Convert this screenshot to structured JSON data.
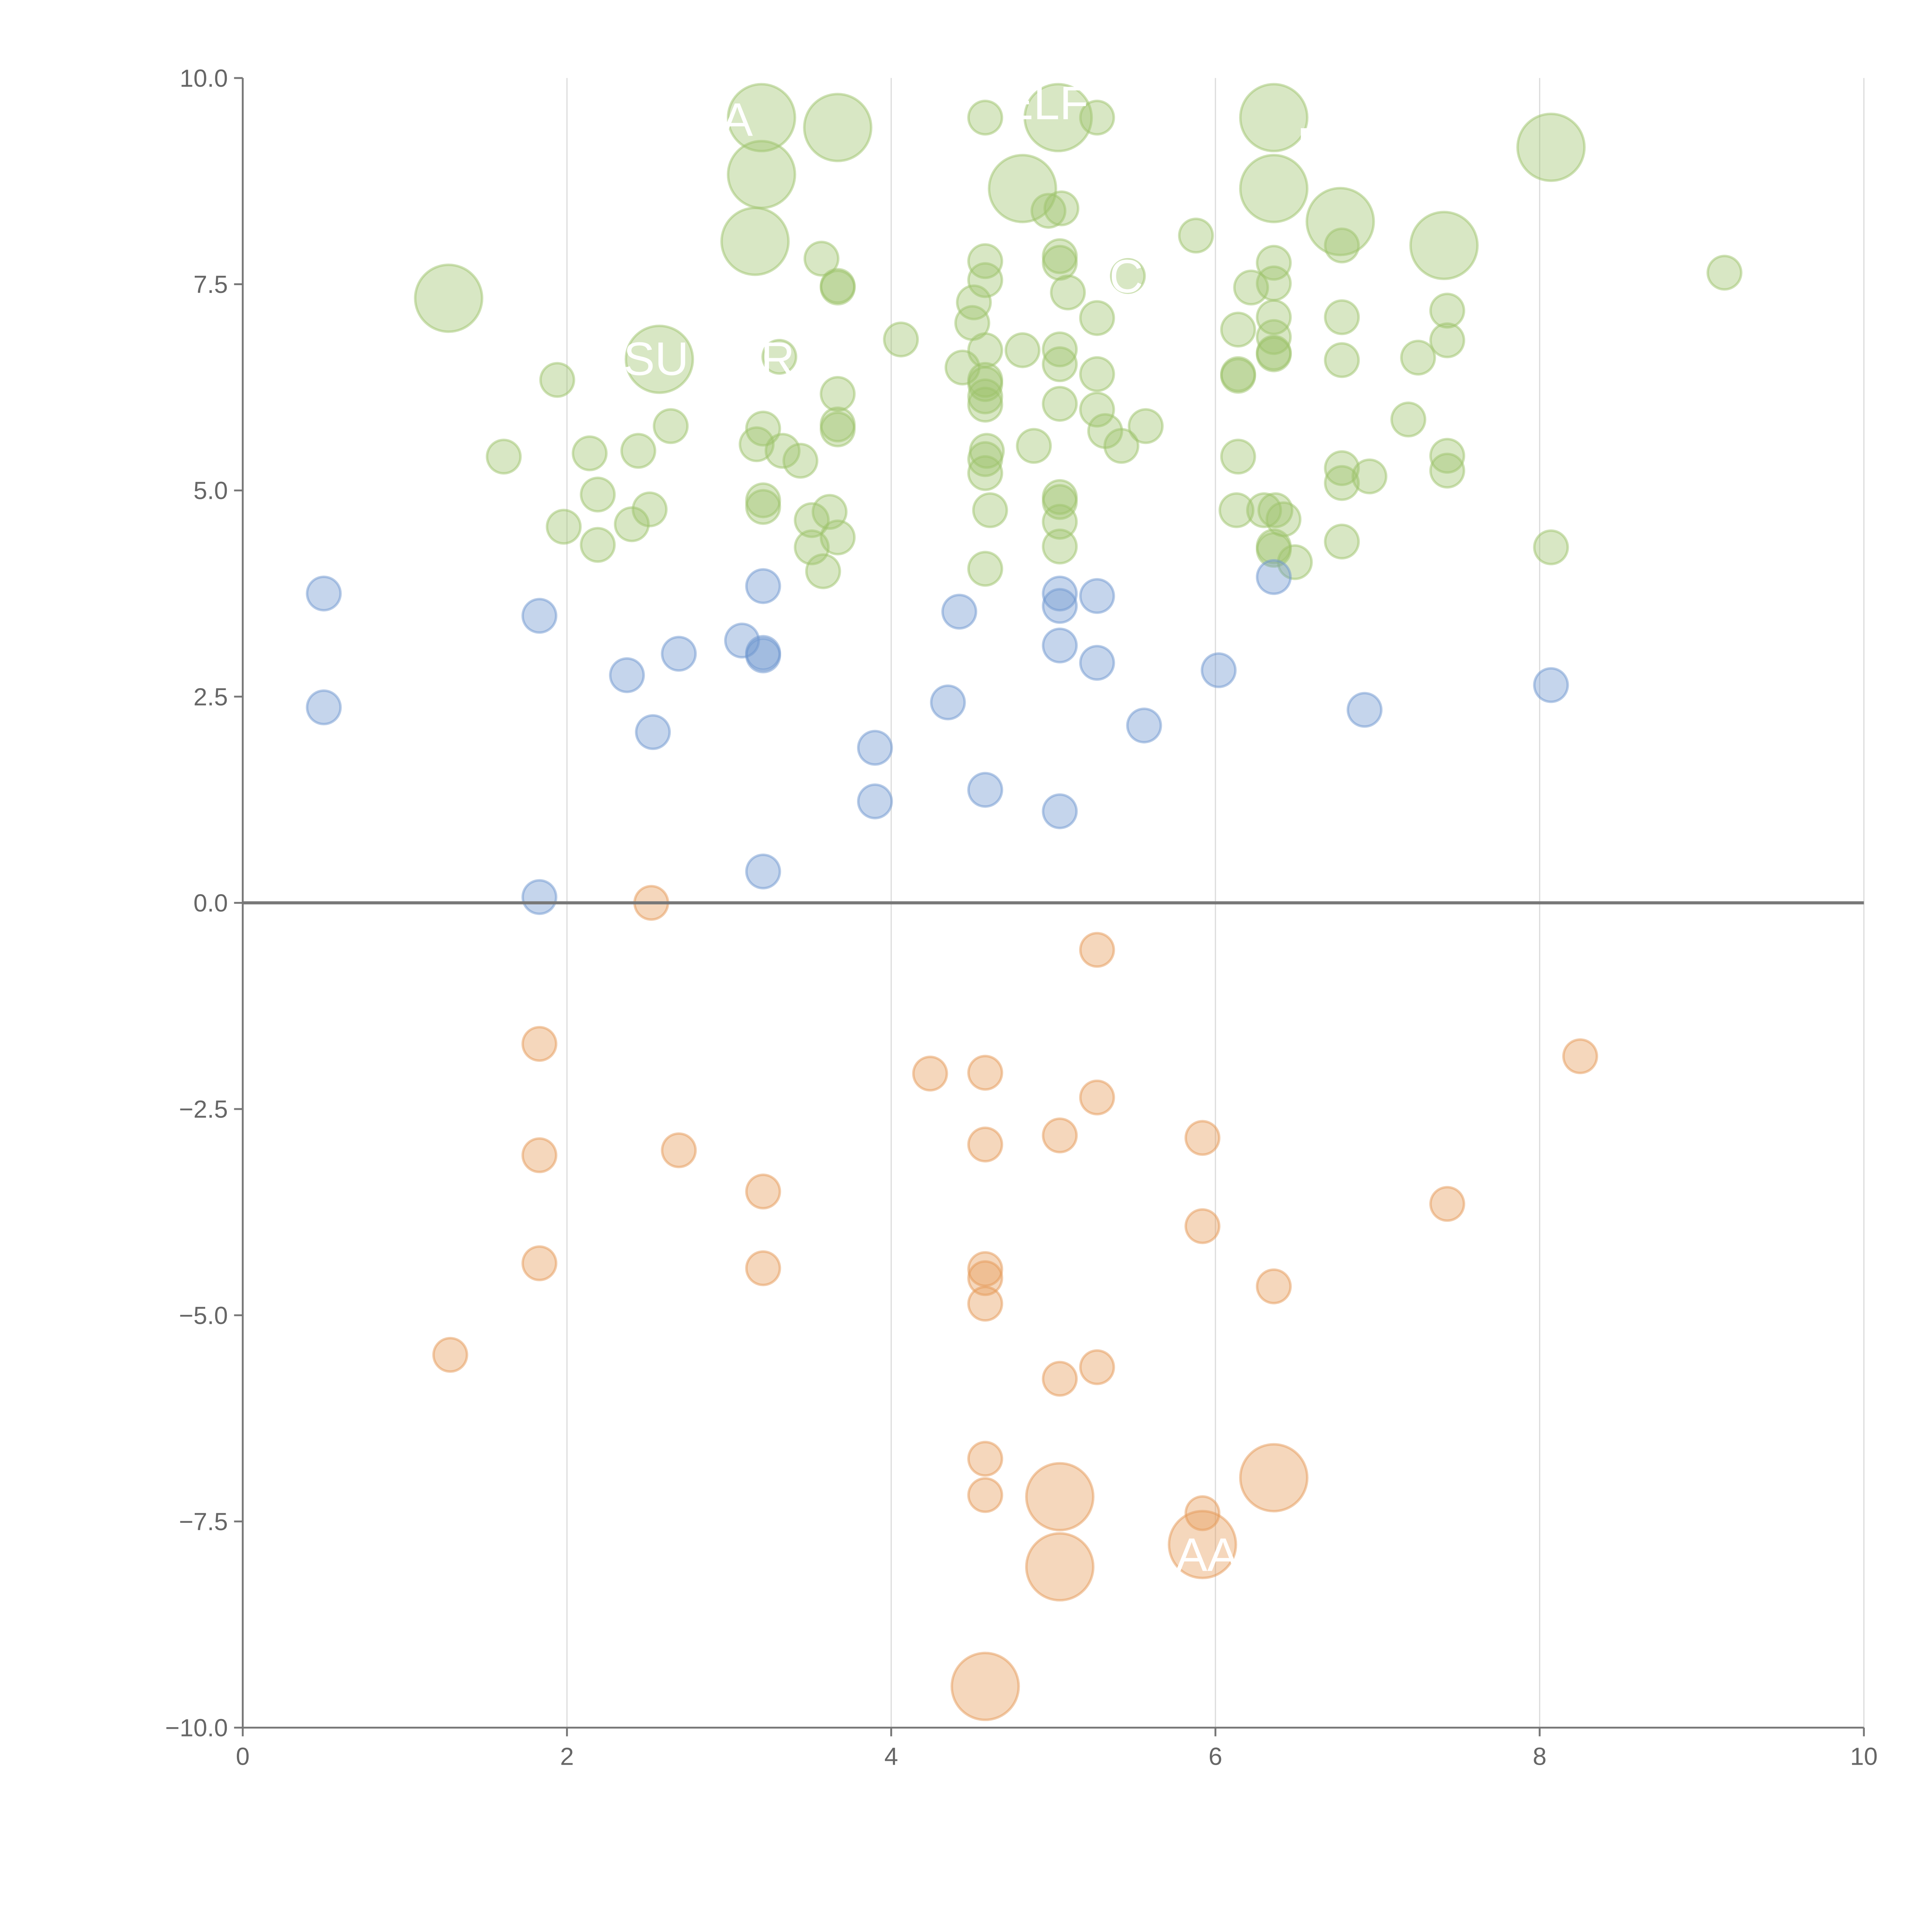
{
  "chart_data": {
    "type": "scatter",
    "title": "",
    "xlabel": "",
    "ylabel": "",
    "xlim": [
      0,
      10
    ],
    "ylim": [
      -10,
      10
    ],
    "x_ticks": [
      "0",
      "2",
      "4",
      "6",
      "8",
      "10"
    ],
    "x_tick_values": [
      0,
      2,
      4,
      6,
      8,
      10
    ],
    "y_ticks": [
      "10.0",
      "7.5",
      "5.0",
      "2.5",
      "0.0",
      "−2.5",
      "−5.0",
      "−7.5",
      "−10.0"
    ],
    "y_tick_values": [
      10,
      7.5,
      5,
      2.5,
      0,
      -2.5,
      -5,
      -7.5,
      -10
    ],
    "grid": "vertical",
    "reference_line_y": 0,
    "point_format": "[x, y, size]",
    "series": [
      {
        "name": "high",
        "color": "#9dc36b",
        "points": [
          [
            3.2,
            9.52,
            4
          ],
          [
            3.67,
            9.4,
            4
          ],
          [
            3.2,
            8.83,
            4
          ],
          [
            3.16,
            8.02,
            4
          ],
          [
            5.03,
            9.52,
            4
          ],
          [
            4.81,
            8.66,
            4
          ],
          [
            6.36,
            9.52,
            4
          ],
          [
            6.36,
            8.66,
            4
          ],
          [
            6.77,
            8.26,
            4
          ],
          [
            7.41,
            7.97,
            4
          ],
          [
            8.07,
            9.16,
            4
          ],
          [
            1.27,
            7.33,
            4
          ],
          [
            2.57,
            6.59,
            4
          ],
          [
            4.58,
            9.52,
            1
          ],
          [
            5.27,
            9.52,
            1
          ],
          [
            4.97,
            8.39,
            1
          ],
          [
            5.05,
            8.42,
            1
          ],
          [
            5.88,
            8.09,
            1
          ],
          [
            3.57,
            7.81,
            1
          ],
          [
            3.67,
            7.48,
            1
          ],
          [
            3.67,
            7.46,
            1
          ],
          [
            4.58,
            7.78,
            1
          ],
          [
            4.58,
            7.55,
            1
          ],
          [
            5.04,
            7.84,
            1
          ],
          [
            5.04,
            7.76,
            1
          ],
          [
            5.09,
            7.4,
            1
          ],
          [
            5.46,
            7.6,
            1
          ],
          [
            4.51,
            7.28,
            1
          ],
          [
            4.5,
            7.03,
            1
          ],
          [
            5.27,
            7.09,
            1
          ],
          [
            4.06,
            6.83,
            1
          ],
          [
            4.81,
            6.7,
            1
          ],
          [
            4.58,
            6.7,
            1
          ],
          [
            4.44,
            6.49,
            1
          ],
          [
            5.04,
            6.71,
            1
          ],
          [
            5.04,
            6.53,
            1
          ],
          [
            5.27,
            6.41,
            1
          ],
          [
            3.31,
            6.62,
            1
          ],
          [
            6.14,
            6.95,
            1
          ],
          [
            6.22,
            7.46,
            1
          ],
          [
            6.36,
            7.76,
            1
          ],
          [
            6.36,
            7.51,
            1
          ],
          [
            6.36,
            7.1,
            1
          ],
          [
            6.36,
            6.86,
            1
          ],
          [
            6.36,
            6.67,
            1
          ],
          [
            6.36,
            6.65,
            1
          ],
          [
            6.14,
            6.41,
            1
          ],
          [
            6.14,
            6.39,
            1
          ],
          [
            6.78,
            7.97,
            1
          ],
          [
            6.78,
            7.1,
            1
          ],
          [
            6.78,
            6.58,
            1
          ],
          [
            7.25,
            6.61,
            1
          ],
          [
            7.43,
            7.18,
            1
          ],
          [
            7.43,
            6.82,
            1
          ],
          [
            9.14,
            7.64,
            1
          ],
          [
            1.94,
            6.34,
            1
          ],
          [
            1.61,
            5.41,
            1
          ],
          [
            2.14,
            5.45,
            1
          ],
          [
            2.44,
            5.48,
            1
          ],
          [
            2.64,
            5.78,
            1
          ],
          [
            2.19,
            4.95,
            1
          ],
          [
            1.98,
            4.56,
            1
          ],
          [
            2.19,
            4.34,
            1
          ],
          [
            2.4,
            4.59,
            1
          ],
          [
            2.51,
            4.77,
            1
          ],
          [
            3.21,
            5.75,
            1
          ],
          [
            3.17,
            5.56,
            1
          ],
          [
            3.33,
            5.48,
            1
          ],
          [
            3.44,
            5.36,
            1
          ],
          [
            3.21,
            4.88,
            1
          ],
          [
            3.21,
            4.8,
            1
          ],
          [
            3.51,
            4.64,
            1
          ],
          [
            3.62,
            4.74,
            1
          ],
          [
            3.67,
            6.17,
            1
          ],
          [
            3.67,
            5.8,
            1
          ],
          [
            3.67,
            5.74,
            1
          ],
          [
            3.67,
            4.43,
            1
          ],
          [
            3.51,
            4.31,
            1
          ],
          [
            3.58,
            4.02,
            1
          ],
          [
            4.58,
            6.34,
            1
          ],
          [
            4.58,
            6.29,
            1
          ],
          [
            4.58,
            6.14,
            1
          ],
          [
            4.58,
            6.04,
            1
          ],
          [
            4.59,
            5.48,
            1
          ],
          [
            4.58,
            5.38,
            1
          ],
          [
            4.58,
            5.21,
            1
          ],
          [
            4.61,
            4.76,
            1
          ],
          [
            4.58,
            4.05,
            1
          ],
          [
            4.88,
            5.54,
            1
          ],
          [
            5.04,
            6.05,
            1
          ],
          [
            5.04,
            4.92,
            1
          ],
          [
            5.04,
            4.86,
            1
          ],
          [
            5.04,
            4.62,
            1
          ],
          [
            5.04,
            4.32,
            1
          ],
          [
            5.27,
            5.98,
            1
          ],
          [
            5.32,
            5.72,
            1
          ],
          [
            5.42,
            5.54,
            1
          ],
          [
            5.57,
            5.78,
            1
          ],
          [
            6.14,
            5.41,
            1
          ],
          [
            6.13,
            4.76,
            1
          ],
          [
            6.3,
            4.76,
            1
          ],
          [
            6.37,
            4.76,
            1
          ],
          [
            6.42,
            4.65,
            1
          ],
          [
            6.36,
            4.32,
            1
          ],
          [
            6.36,
            4.28,
            1
          ],
          [
            6.49,
            4.13,
            1
          ],
          [
            6.78,
            5.27,
            1
          ],
          [
            6.78,
            5.09,
            1
          ],
          [
            6.95,
            5.17,
            1
          ],
          [
            6.78,
            4.38,
            1
          ],
          [
            7.19,
            5.86,
            1
          ],
          [
            7.43,
            5.42,
            1
          ],
          [
            7.43,
            5.24,
            1
          ],
          [
            8.07,
            4.31,
            1
          ]
        ]
      },
      {
        "name": "mid",
        "color": "#6f97cf",
        "points": [
          [
            0.5,
            3.75,
            1
          ],
          [
            0.5,
            2.37,
            1
          ],
          [
            1.83,
            3.48,
            1
          ],
          [
            1.83,
            0.07,
            1
          ],
          [
            2.37,
            2.76,
            1
          ],
          [
            2.53,
            2.07,
            1
          ],
          [
            2.69,
            3.02,
            1
          ],
          [
            3.08,
            3.18,
            1
          ],
          [
            3.21,
            3.84,
            1
          ],
          [
            3.21,
            3.03,
            1
          ],
          [
            3.21,
            3.0,
            1
          ],
          [
            3.21,
            0.38,
            1
          ],
          [
            3.9,
            1.88,
            1
          ],
          [
            3.9,
            1.23,
            1
          ],
          [
            4.35,
            2.43,
            1
          ],
          [
            4.42,
            3.53,
            1
          ],
          [
            4.58,
            1.37,
            1
          ],
          [
            5.04,
            3.75,
            1
          ],
          [
            5.04,
            3.6,
            1
          ],
          [
            5.04,
            3.12,
            1
          ],
          [
            5.04,
            1.11,
            1
          ],
          [
            5.27,
            3.72,
            1
          ],
          [
            5.27,
            2.91,
            1
          ],
          [
            5.56,
            2.15,
            1
          ],
          [
            6.02,
            2.82,
            1
          ],
          [
            6.36,
            3.95,
            1
          ],
          [
            6.92,
            2.34,
            1
          ],
          [
            8.07,
            2.64,
            1
          ]
        ]
      },
      {
        "name": "low",
        "color": "#e59a58",
        "points": [
          [
            2.52,
            0.0,
            1
          ],
          [
            1.83,
            -1.71,
            1
          ],
          [
            1.83,
            -3.06,
            1
          ],
          [
            1.83,
            -4.37,
            1
          ],
          [
            1.28,
            -5.48,
            1
          ],
          [
            2.69,
            -3.0,
            1
          ],
          [
            3.21,
            -3.5,
            1
          ],
          [
            3.21,
            -4.43,
            1
          ],
          [
            4.24,
            -2.07,
            1
          ],
          [
            4.58,
            -2.06,
            1
          ],
          [
            4.58,
            -2.93,
            1
          ],
          [
            4.58,
            -4.44,
            1
          ],
          [
            4.58,
            -4.55,
            1
          ],
          [
            4.58,
            -4.86,
            1
          ],
          [
            4.58,
            -6.74,
            1
          ],
          [
            4.58,
            -7.18,
            1
          ],
          [
            4.58,
            -9.5,
            4
          ],
          [
            5.04,
            -2.82,
            1
          ],
          [
            5.04,
            -5.77,
            1
          ],
          [
            5.04,
            -7.2,
            4
          ],
          [
            5.04,
            -8.05,
            4
          ],
          [
            5.27,
            -0.57,
            1
          ],
          [
            5.27,
            -2.36,
            1
          ],
          [
            5.27,
            -5.63,
            1
          ],
          [
            5.92,
            -2.85,
            1
          ],
          [
            5.92,
            -3.92,
            1
          ],
          [
            5.92,
            -7.4,
            1
          ],
          [
            5.92,
            -7.78,
            4
          ],
          [
            6.36,
            -4.65,
            1
          ],
          [
            6.36,
            -6.97,
            4
          ],
          [
            7.43,
            -3.65,
            1
          ],
          [
            8.25,
            -1.86,
            1
          ]
        ]
      }
    ],
    "annotations": [
      {
        "text": "A",
        "x": 3.05,
        "y": 9.3
      },
      {
        "text": "ELF",
        "x": 4.95,
        "y": 9.5
      },
      {
        "text": "SU",
        "x": 2.55,
        "y": 6.4
      },
      {
        "text": "R",
        "x": 3.3,
        "y": 6.4
      },
      {
        "text": "C",
        "x": 5.45,
        "y": 7.4
      },
      {
        "text": "E",
        "x": 6.6,
        "y": 9.0
      },
      {
        "text": "AA",
        "x": 5.95,
        "y": -8.1
      }
    ]
  }
}
